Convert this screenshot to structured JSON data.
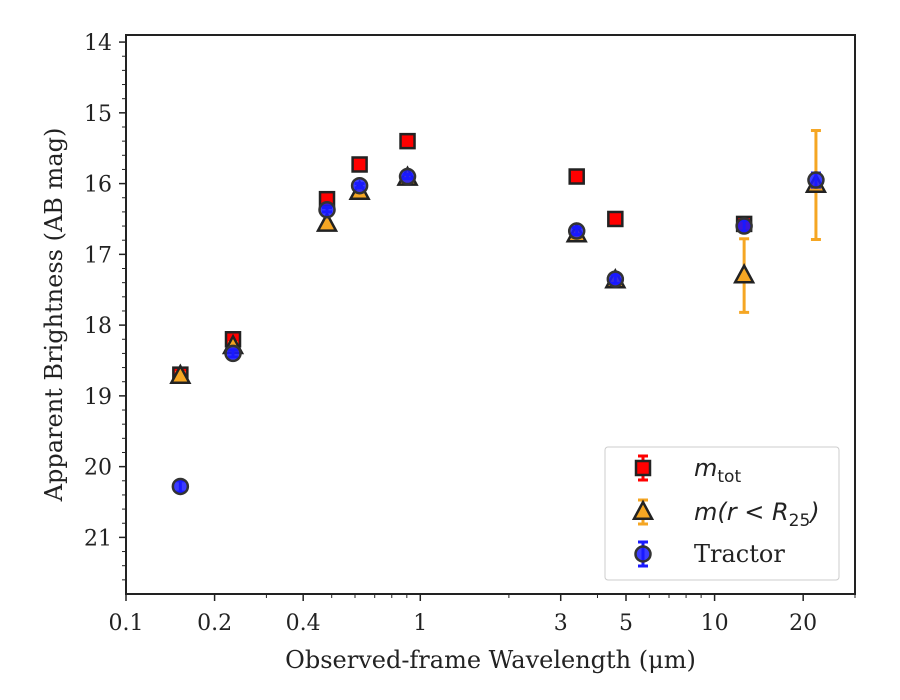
{
  "chart_data": {
    "type": "scatter",
    "xlabel": "Observed-frame Wavelength (μm)",
    "ylabel": "Apparent Brightness (AB mag)",
    "xscale": "log",
    "xlim": [
      0.1,
      30
    ],
    "ylim": [
      21.8,
      13.9
    ],
    "y_inverted": true,
    "x_ticks": [
      0.1,
      0.2,
      0.4,
      1,
      3,
      5,
      10,
      20
    ],
    "x_tick_labels": [
      "0.1",
      "0.2",
      "0.4",
      "1",
      "3",
      "5",
      "10",
      "20"
    ],
    "y_ticks": [
      14,
      15,
      16,
      17,
      18,
      19,
      20,
      21
    ],
    "y_tick_labels": [
      "14",
      "15",
      "16",
      "17",
      "18",
      "19",
      "20",
      "21"
    ],
    "legend_position": "lower-right",
    "series": [
      {
        "name": "m_tot",
        "legend_base": "m",
        "legend_sub": "tot",
        "marker": "square",
        "color": "#ff0000",
        "edge": "#222222",
        "x": [
          0.153,
          0.231,
          0.482,
          0.622,
          0.905,
          3.4,
          4.6,
          12.6
        ],
        "y": [
          18.7,
          18.2,
          16.22,
          15.73,
          15.4,
          15.9,
          16.5,
          16.57
        ],
        "yerr": [
          0.05,
          0.05,
          0.03,
          0.03,
          0.03,
          0.03,
          0.03,
          0.05
        ]
      },
      {
        "name": "m(r < R25)",
        "legend_base": "m(r < R",
        "legend_sub": "25",
        "legend_tail": ")",
        "marker": "triangle",
        "color": "#f5a623",
        "edge": "#222222",
        "x": [
          0.153,
          0.231,
          0.482,
          0.622,
          0.905,
          3.4,
          4.6,
          12.6,
          22.1
        ],
        "y": [
          18.72,
          18.3,
          16.57,
          16.12,
          15.92,
          16.72,
          17.37,
          17.3,
          16.02
        ],
        "yerr": [
          0.05,
          0.05,
          0.03,
          0.03,
          0.03,
          0.05,
          0.08,
          0.52,
          0.77
        ]
      },
      {
        "name": "Tractor",
        "marker": "circle",
        "color": "#1a1aff",
        "edge": "#333333",
        "x": [
          0.153,
          0.231,
          0.482,
          0.622,
          0.905,
          3.4,
          4.6,
          12.6,
          22.1
        ],
        "y": [
          20.28,
          18.4,
          16.37,
          16.03,
          15.9,
          16.67,
          17.35,
          16.6,
          15.95
        ],
        "yerr": [
          0.08,
          0.05,
          0.03,
          0.03,
          0.03,
          0.05,
          0.06,
          0.08,
          0.1
        ]
      }
    ]
  }
}
